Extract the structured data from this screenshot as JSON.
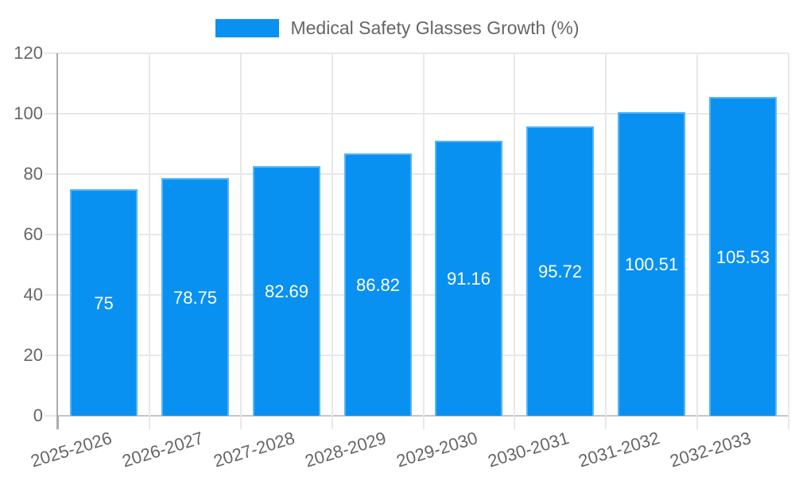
{
  "chart_data": {
    "type": "bar",
    "title": "Medical Safety Glasses Growth (%)",
    "categories": [
      "2025-2026",
      "2026-2027",
      "2027-2028",
      "2028-2029",
      "2029-2030",
      "2030-2031",
      "2031-2032",
      "2032-2033"
    ],
    "values": [
      75,
      78.75,
      82.69,
      86.82,
      91.16,
      95.72,
      100.51,
      105.53
    ],
    "value_labels": [
      "75",
      "78.75",
      "82.69",
      "86.82",
      "91.16",
      "95.72",
      "100.51",
      "105.53"
    ],
    "ylim": [
      0,
      120
    ],
    "yticks": [
      0,
      20,
      40,
      60,
      80,
      100,
      120
    ],
    "xlabel": "",
    "ylabel": "",
    "grid": true,
    "legend_position": "top",
    "legend_label": "Medical Safety Glasses Growth (%)",
    "colors": {
      "bar_fill": "#0991f2",
      "bar_border": "#55b4f7",
      "grid_line": "#e8e8e8",
      "zero_line": "#c6c6c6",
      "axis_line": "#ababab",
      "tick_text": "#666666",
      "value_text": "#ffffff"
    }
  }
}
